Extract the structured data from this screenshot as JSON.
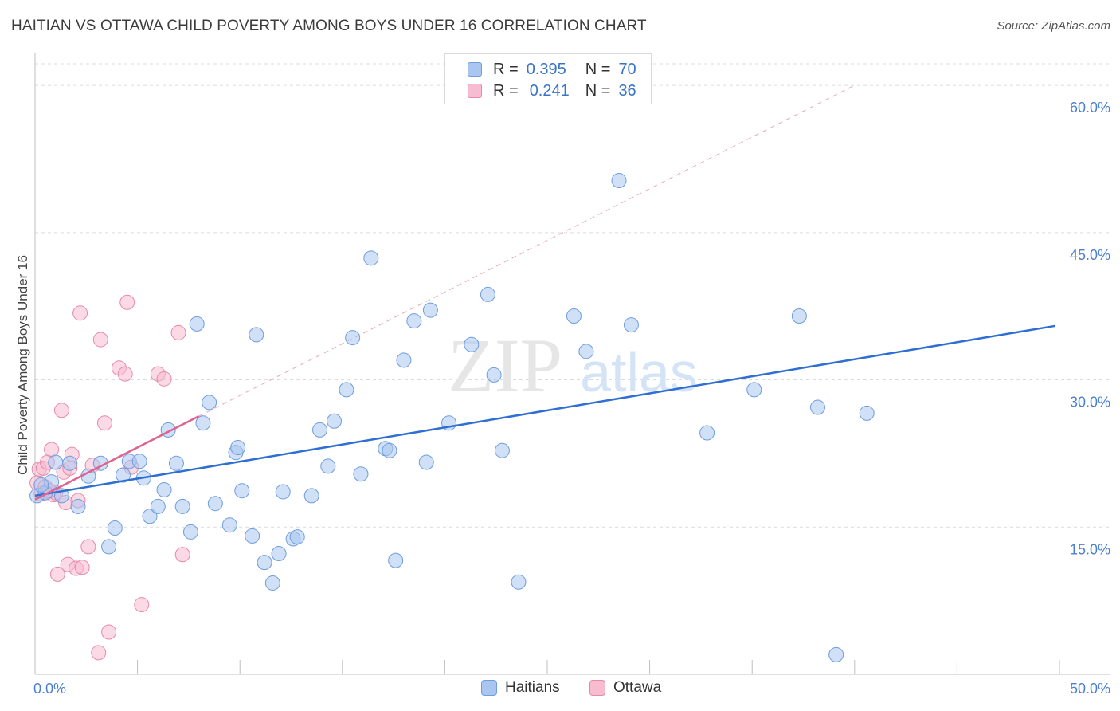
{
  "title": "HAITIAN VS OTTAWA CHILD POVERTY AMONG BOYS UNDER 16 CORRELATION CHART",
  "source": "Source: ZipAtlas.com",
  "watermark": {
    "zip": "ZIP",
    "atlas": "atlas"
  },
  "legend_top": [
    {
      "r_label": "R =",
      "r_value": "0.395",
      "n_label": "N =",
      "n_value": "70"
    },
    {
      "r_label": "R =",
      "r_value": "0.241",
      "n_label": "N =",
      "n_value": "36"
    }
  ],
  "legend_bottom": [
    {
      "name": "Haitians"
    },
    {
      "name": "Ottawa"
    }
  ],
  "colors": {
    "haitians_fill": "#a8c6f0",
    "haitians_stroke": "#6f9ddf",
    "haitians_line": "#2f6fd1",
    "ottawa_fill": "#f7bcd0",
    "ottawa_stroke": "#e889a9",
    "ottawa_line": "#e0628f",
    "grid": "#dcdcdc",
    "tick_text": "#4a7fd1"
  },
  "chart_data": {
    "type": "scatter",
    "title": "HAITIAN VS OTTAWA CHILD POVERTY AMONG BOYS UNDER 16 CORRELATION CHART",
    "xlabel": "",
    "ylabel": "Child Poverty Among Boys Under 16",
    "xlim": [
      0,
      50
    ],
    "ylim": [
      0,
      60
    ],
    "x_tick_labels": [
      "0.0%",
      "50.0%"
    ],
    "y_ticks": [
      15,
      30,
      45,
      60
    ],
    "y_tick_labels": [
      "15.0%",
      "30.0%",
      "45.0%",
      "60.0%"
    ],
    "grid": true,
    "legend_placement": "top-center",
    "series": [
      {
        "name": "Haitians",
        "R": 0.395,
        "N": 70,
        "trendline": {
          "x": [
            0,
            49.8
          ],
          "y": [
            18.2,
            35.5
          ],
          "style": "solid"
        },
        "points": [
          [
            0.1,
            18.2
          ],
          [
            0.5,
            18.5
          ],
          [
            0.8,
            19.6
          ],
          [
            1.0,
            21.6
          ],
          [
            1.3,
            18.2
          ],
          [
            1.7,
            21.5
          ],
          [
            2.1,
            17.1
          ],
          [
            2.6,
            20.2
          ],
          [
            3.2,
            21.5
          ],
          [
            3.6,
            13.0
          ],
          [
            3.9,
            14.9
          ],
          [
            4.3,
            20.3
          ],
          [
            4.6,
            21.7
          ],
          [
            5.1,
            21.7
          ],
          [
            5.3,
            20.0
          ],
          [
            5.6,
            16.1
          ],
          [
            6.0,
            17.1
          ],
          [
            6.3,
            18.8
          ],
          [
            6.5,
            24.9
          ],
          [
            6.9,
            21.5
          ],
          [
            7.2,
            17.1
          ],
          [
            7.6,
            14.5
          ],
          [
            7.9,
            35.7
          ],
          [
            8.2,
            25.6
          ],
          [
            8.5,
            27.7
          ],
          [
            8.8,
            17.4
          ],
          [
            9.5,
            15.2
          ],
          [
            9.8,
            22.6
          ],
          [
            9.9,
            23.1
          ],
          [
            10.1,
            18.7
          ],
          [
            10.6,
            14.1
          ],
          [
            10.8,
            34.6
          ],
          [
            11.2,
            11.4
          ],
          [
            11.6,
            9.3
          ],
          [
            11.9,
            12.3
          ],
          [
            12.1,
            18.6
          ],
          [
            12.6,
            13.8
          ],
          [
            12.8,
            14.0
          ],
          [
            13.5,
            18.2
          ],
          [
            13.9,
            24.9
          ],
          [
            14.3,
            21.2
          ],
          [
            14.6,
            25.8
          ],
          [
            15.2,
            29.0
          ],
          [
            15.5,
            34.3
          ],
          [
            15.9,
            20.4
          ],
          [
            16.4,
            42.4
          ],
          [
            17.1,
            23.0
          ],
          [
            17.3,
            22.8
          ],
          [
            17.6,
            11.6
          ],
          [
            18.0,
            32.0
          ],
          [
            18.5,
            36.0
          ],
          [
            19.1,
            21.6
          ],
          [
            19.3,
            37.1
          ],
          [
            20.2,
            25.6
          ],
          [
            21.3,
            33.6
          ],
          [
            22.1,
            38.7
          ],
          [
            22.4,
            30.5
          ],
          [
            22.8,
            22.8
          ],
          [
            23.6,
            9.4
          ],
          [
            26.3,
            36.5
          ],
          [
            26.9,
            32.9
          ],
          [
            28.5,
            50.3
          ],
          [
            29.1,
            35.6
          ],
          [
            32.8,
            24.6
          ],
          [
            35.1,
            29.0
          ],
          [
            37.3,
            36.5
          ],
          [
            38.2,
            27.2
          ],
          [
            39.1,
            2.0
          ],
          [
            40.6,
            26.6
          ],
          [
            0.3,
            19.3
          ]
        ]
      },
      {
        "name": "Ottawa",
        "R": 0.241,
        "N": 36,
        "trendline": {
          "x": [
            0,
            8.0
          ],
          "y": [
            17.8,
            26.3
          ],
          "style": "solid",
          "extended": {
            "x": [
              8.0,
              40.0
            ],
            "y": [
              26.3,
              60.0
            ],
            "style": "dashed"
          }
        },
        "points": [
          [
            0.1,
            19.5
          ],
          [
            0.2,
            20.9
          ],
          [
            0.3,
            18.4
          ],
          [
            0.4,
            21.0
          ],
          [
            0.5,
            19.1
          ],
          [
            0.6,
            21.6
          ],
          [
            0.8,
            22.9
          ],
          [
            0.9,
            18.3
          ],
          [
            1.0,
            18.5
          ],
          [
            1.1,
            10.2
          ],
          [
            1.3,
            26.9
          ],
          [
            1.4,
            20.6
          ],
          [
            1.5,
            17.5
          ],
          [
            1.6,
            11.2
          ],
          [
            1.7,
            21.0
          ],
          [
            1.8,
            22.4
          ],
          [
            2.0,
            10.8
          ],
          [
            2.1,
            17.7
          ],
          [
            2.2,
            36.8
          ],
          [
            2.3,
            10.9
          ],
          [
            2.6,
            13.0
          ],
          [
            2.8,
            21.3
          ],
          [
            3.1,
            2.2
          ],
          [
            3.2,
            34.1
          ],
          [
            3.4,
            25.6
          ],
          [
            3.6,
            4.3
          ],
          [
            4.1,
            31.2
          ],
          [
            4.4,
            30.6
          ],
          [
            4.5,
            37.9
          ],
          [
            4.7,
            21.1
          ],
          [
            5.2,
            7.1
          ],
          [
            6.0,
            30.6
          ],
          [
            6.3,
            30.1
          ],
          [
            7.0,
            34.8
          ],
          [
            7.2,
            12.2
          ],
          [
            0.7,
            18.7
          ]
        ]
      }
    ]
  }
}
